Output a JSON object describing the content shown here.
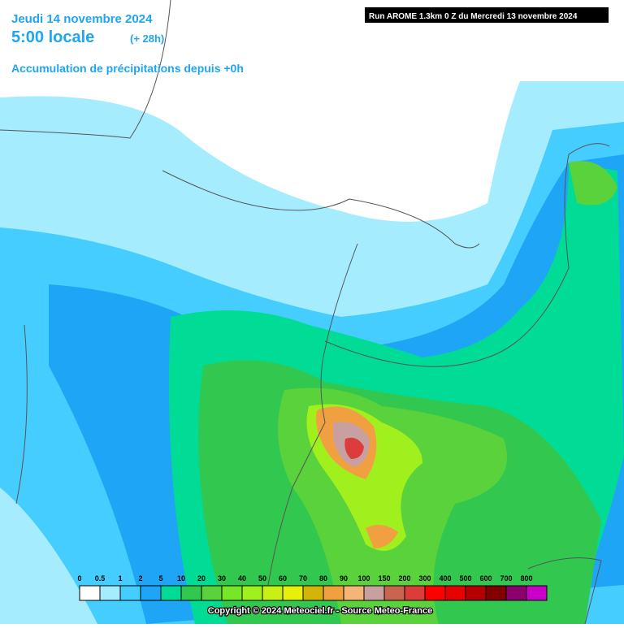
{
  "header": {
    "date": "Jeudi 14 novembre 2024",
    "time": "5:00 locale",
    "lead": "(+ 28h)",
    "product": "Accumulation de précipitations depuis +0h",
    "run": "Run AROME 1.3km 0 Z du Mercredi 13 novembre 2024"
  },
  "legend": [
    {
      "label": "0",
      "color": "#ffffff"
    },
    {
      "label": "0.5",
      "color": "#a6ecff"
    },
    {
      "label": "1",
      "color": "#46cdff"
    },
    {
      "label": "2",
      "color": "#1ea5f5"
    },
    {
      "label": "5",
      "color": "#00dc96"
    },
    {
      "label": "10",
      "color": "#32c850"
    },
    {
      "label": "20",
      "color": "#5ad23c"
    },
    {
      "label": "30",
      "color": "#78e628"
    },
    {
      "label": "40",
      "color": "#a0f01e"
    },
    {
      "label": "50",
      "color": "#c8f014"
    },
    {
      "label": "60",
      "color": "#e6f00a"
    },
    {
      "label": "70",
      "color": "#d2b40a"
    },
    {
      "label": "80",
      "color": "#f0a040"
    },
    {
      "label": "90",
      "color": "#f5b478"
    },
    {
      "label": "100",
      "color": "#c8a0a0"
    },
    {
      "label": "150",
      "color": "#c86450"
    },
    {
      "label": "200",
      "color": "#dc3c3c"
    },
    {
      "label": "300",
      "color": "#ff0000"
    },
    {
      "label": "400",
      "color": "#e60000"
    },
    {
      "label": "500",
      "color": "#b40000"
    },
    {
      "label": "600",
      "color": "#820000"
    },
    {
      "label": "700",
      "color": "#8c006e"
    },
    {
      "label": "800",
      "color": "#c800c8"
    }
  ],
  "footer": {
    "copyright": "Copyright © 2024 Meteociel.fr - Source Meteo-France"
  }
}
